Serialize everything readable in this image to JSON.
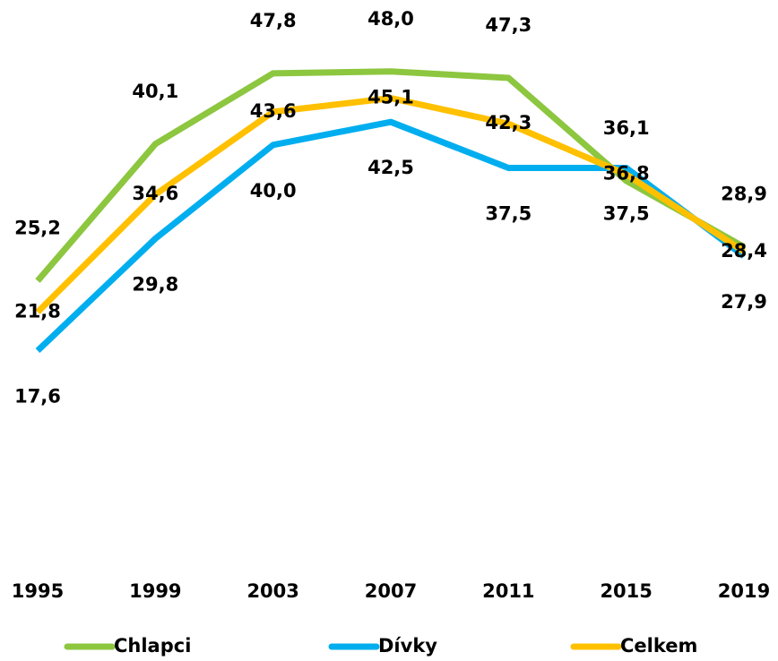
{
  "chart_data": {
    "type": "line",
    "categories": [
      "1995",
      "1999",
      "2003",
      "2007",
      "2011",
      "2015",
      "2019"
    ],
    "series": [
      {
        "name": "Chlapci",
        "color": "#8dc63f",
        "values": [
          25.2,
          40.1,
          47.8,
          48.0,
          47.3,
          36.1,
          28.9
        ],
        "value_labels": [
          "25,2",
          "40,1",
          "47,8",
          "48,0",
          "47,3",
          "36,1",
          "28,9"
        ]
      },
      {
        "name": "Dívky",
        "color": "#00aeef",
        "values": [
          17.6,
          29.8,
          40.0,
          42.5,
          37.5,
          37.5,
          27.9
        ],
        "value_labels": [
          "17,6",
          "29,8",
          "40,0",
          "42,5",
          "37,5",
          "37,5",
          "27,9"
        ]
      },
      {
        "name": "Celkem",
        "color": "#ffc000",
        "values": [
          21.8,
          34.6,
          43.6,
          45.1,
          42.3,
          36.8,
          28.4
        ],
        "value_labels": [
          "21,8",
          "34,6",
          "43,6",
          "45,1",
          "42,3",
          "36,8",
          "28,4"
        ]
      }
    ],
    "ylim": [
      0,
      55
    ],
    "grid": false,
    "legend": "bottom"
  }
}
